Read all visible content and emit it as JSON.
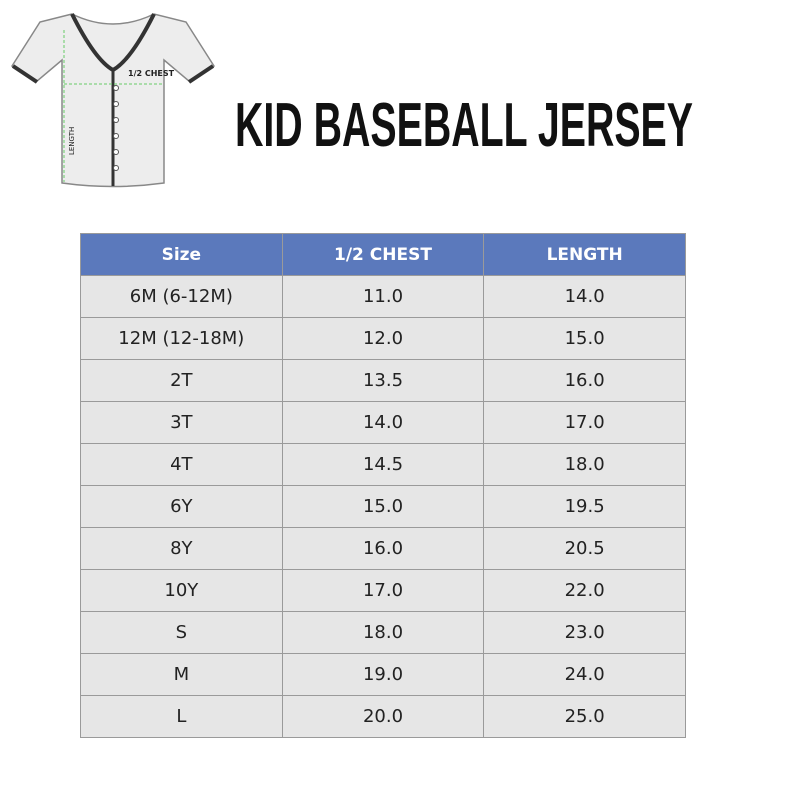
{
  "header": {
    "title": "KID BASEBALL JERSEY"
  },
  "illustration": {
    "chest_label": "1/2 CHEST",
    "length_label": "LENGTH"
  },
  "table": {
    "columns": [
      "Size",
      "1/2 CHEST",
      "LENGTH"
    ],
    "rows": [
      [
        "6M (6-12M)",
        "11.0",
        "14.0"
      ],
      [
        "12M (12-18M)",
        "12.0",
        "15.0"
      ],
      [
        "2T",
        "13.5",
        "16.0"
      ],
      [
        "3T",
        "14.0",
        "17.0"
      ],
      [
        "4T",
        "14.5",
        "18.0"
      ],
      [
        "6Y",
        "15.0",
        "19.5"
      ],
      [
        "8Y",
        "16.0",
        "20.5"
      ],
      [
        "10Y",
        "17.0",
        "22.0"
      ],
      [
        "S",
        "18.0",
        "23.0"
      ],
      [
        "M",
        "19.0",
        "24.0"
      ],
      [
        "L",
        "20.0",
        "25.0"
      ]
    ]
  }
}
